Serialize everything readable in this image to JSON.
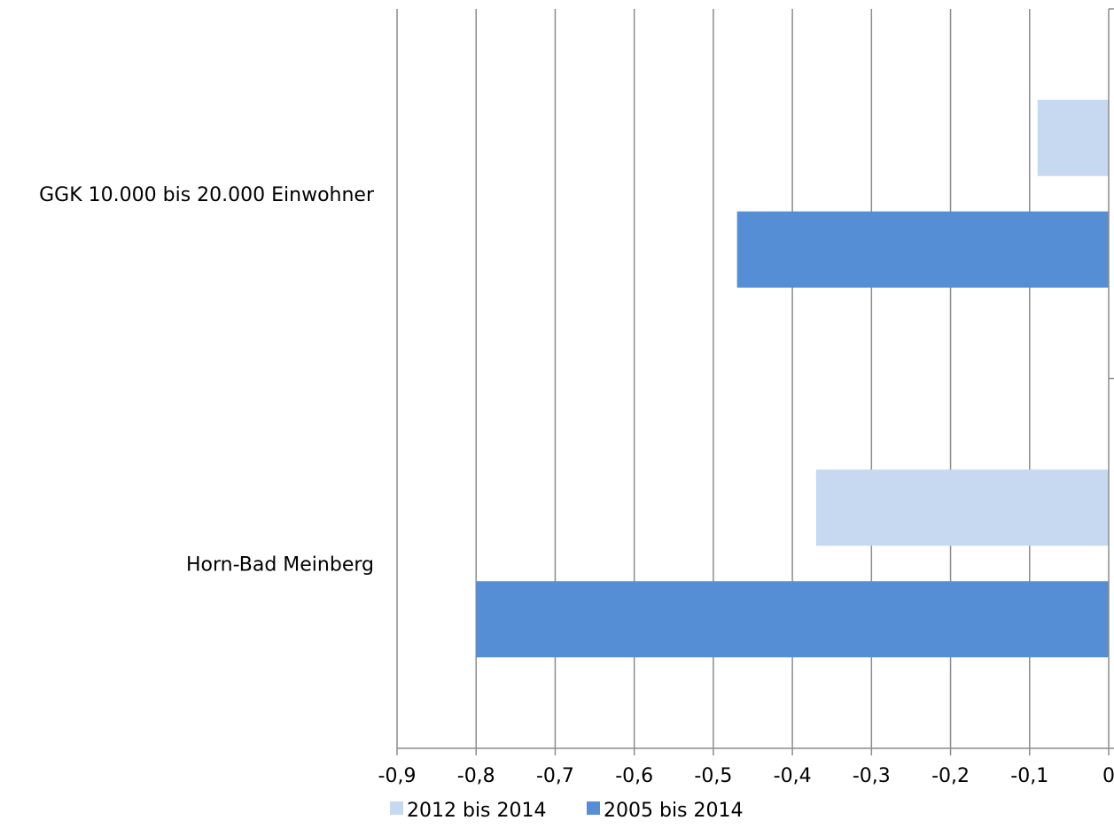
{
  "chart_data": {
    "type": "bar",
    "orientation": "horizontal",
    "title": "",
    "xlabel": "",
    "ylabel": "",
    "categories": [
      "GGK 10.000 bis 20.000 Einwohner",
      "Horn-Bad Meinberg"
    ],
    "series": [
      {
        "name": "2012 bis 2014",
        "values": [
          -0.09,
          -0.37
        ],
        "color": "#c6d9f1"
      },
      {
        "name": "2005 bis 2014",
        "values": [
          -0.47,
          -0.8
        ],
        "color": "#558ed5"
      }
    ],
    "xlim": [
      -0.9,
      0
    ],
    "xticks": [
      -0.9,
      -0.8,
      -0.7,
      -0.6,
      -0.5,
      -0.4,
      -0.3,
      -0.2,
      -0.1,
      0
    ],
    "xtick_labels": [
      "-0,9",
      "-0,8",
      "-0,7",
      "-0,6",
      "-0,5",
      "-0,4",
      "-0,3",
      "-0,2",
      "-0,1",
      "0"
    ],
    "grid": true,
    "legend": "bottom"
  },
  "colors": {
    "gridline": "#8c8c8c",
    "axis": "#000000"
  }
}
